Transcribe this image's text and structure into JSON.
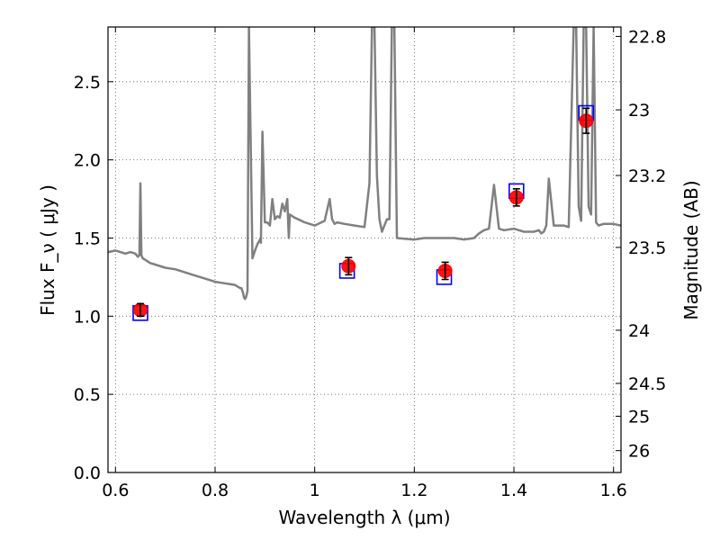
{
  "chart_data": {
    "type": "scatter",
    "title": "",
    "xlabel": "Wavelength  λ (μm)",
    "ylabel": "Flux  F_ν  ( μJy )",
    "ylabel_right": "Magnitude (AB)",
    "xlim": [
      0.585,
      1.615
    ],
    "ylim": [
      0.0,
      2.85
    ],
    "grid": true,
    "x_ticks": [
      0.6,
      0.8,
      1.0,
      1.2,
      1.4,
      1.6
    ],
    "x_tick_labels": [
      "0.6",
      "0.8",
      "1",
      "1.2",
      "1.4",
      "1.6"
    ],
    "y_ticks": [
      0.0,
      0.5,
      1.0,
      1.5,
      2.0,
      2.5
    ],
    "y_tick_labels": [
      "0.0",
      "0.5",
      "1.0",
      "1.5",
      "2.0",
      "2.5"
    ],
    "right_ticks": [
      {
        "label": "22.8",
        "flux": 2.79
      },
      {
        "label": "23",
        "flux": 2.32
      },
      {
        "label": "23.2",
        "flux": 1.9
      },
      {
        "label": "23.5",
        "flux": 1.44
      },
      {
        "label": "24",
        "flux": 0.91
      },
      {
        "label": "24.5",
        "flux": 0.57
      },
      {
        "label": "25",
        "flux": 0.36
      },
      {
        "label": "26",
        "flux": 0.14
      }
    ],
    "series": [
      {
        "kind": "line",
        "color": "#808080",
        "x": [
          0.585,
          0.6,
          0.61,
          0.62,
          0.63,
          0.64,
          0.645,
          0.648,
          0.65,
          0.652,
          0.655,
          0.66,
          0.67,
          0.68,
          0.7,
          0.72,
          0.74,
          0.76,
          0.78,
          0.8,
          0.82,
          0.84,
          0.845,
          0.85,
          0.853,
          0.856,
          0.858,
          0.86,
          0.862,
          0.865,
          0.868,
          0.875,
          0.88,
          0.885,
          0.89,
          0.892,
          0.895,
          0.9,
          0.905,
          0.91,
          0.915,
          0.92,
          0.925,
          0.93,
          0.935,
          0.94,
          0.945,
          0.948,
          0.95,
          0.955,
          0.96,
          0.98,
          1.0,
          1.02,
          1.03,
          1.035,
          1.04,
          1.045,
          1.06,
          1.08,
          1.1,
          1.11,
          1.115,
          1.12,
          1.125,
          1.13,
          1.135,
          1.14,
          1.145,
          1.15,
          1.155,
          1.16,
          1.165,
          1.2,
          1.22,
          1.25,
          1.28,
          1.3,
          1.32,
          1.33,
          1.34,
          1.35,
          1.355,
          1.36,
          1.37,
          1.38,
          1.4,
          1.42,
          1.44,
          1.45,
          1.455,
          1.46,
          1.465,
          1.47,
          1.48,
          1.5,
          1.51,
          1.52,
          1.525,
          1.53,
          1.535,
          1.54,
          1.545,
          1.55,
          1.555,
          1.56,
          1.565,
          1.57,
          1.58,
          1.6,
          1.615
        ],
        "y": [
          1.41,
          1.42,
          1.41,
          1.4,
          1.41,
          1.4,
          1.38,
          1.39,
          1.85,
          1.39,
          1.37,
          1.36,
          1.34,
          1.33,
          1.31,
          1.3,
          1.28,
          1.26,
          1.24,
          1.22,
          1.21,
          1.2,
          1.19,
          1.18,
          1.18,
          1.15,
          1.12,
          1.11,
          1.12,
          1.16,
          2.85,
          1.37,
          1.42,
          1.46,
          1.49,
          1.47,
          2.18,
          1.6,
          1.6,
          1.58,
          1.75,
          1.62,
          1.64,
          1.63,
          1.72,
          1.67,
          1.75,
          1.5,
          1.65,
          1.64,
          1.63,
          1.6,
          1.58,
          1.61,
          1.75,
          1.62,
          1.59,
          1.6,
          1.59,
          1.58,
          1.57,
          1.85,
          2.85,
          2.85,
          1.9,
          1.62,
          1.54,
          1.58,
          1.62,
          1.62,
          2.85,
          2.85,
          1.5,
          1.49,
          1.5,
          1.5,
          1.5,
          1.49,
          1.5,
          1.53,
          1.55,
          1.56,
          1.7,
          1.84,
          1.56,
          1.55,
          1.56,
          1.54,
          1.54,
          1.55,
          1.53,
          1.54,
          1.58,
          1.88,
          1.58,
          1.58,
          1.57,
          2.85,
          2.85,
          1.7,
          1.61,
          2.85,
          2.85,
          1.7,
          1.65,
          2.85,
          1.6,
          1.58,
          1.59,
          1.59,
          1.58
        ]
      },
      {
        "kind": "boxes",
        "color": "#0000ff",
        "x": [
          0.65,
          1.065,
          1.26,
          1.405,
          1.545
        ],
        "y": [
          1.02,
          1.29,
          1.25,
          1.8,
          2.3
        ]
      },
      {
        "kind": "points",
        "color": "#ff0000",
        "x": [
          0.65,
          1.068,
          1.262,
          1.405,
          1.545
        ],
        "y": [
          1.04,
          1.32,
          1.29,
          1.76,
          2.25
        ],
        "yerr": [
          0.04,
          0.055,
          0.055,
          0.055,
          0.08
        ]
      }
    ]
  }
}
